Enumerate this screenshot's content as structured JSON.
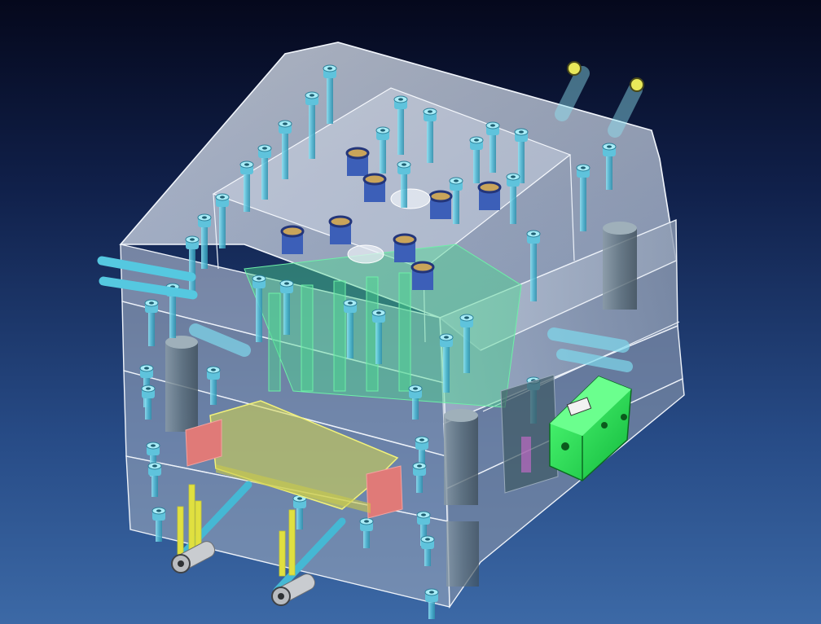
{
  "scene": {
    "subject": "mold-assembly-3d-view",
    "colors": {
      "background_top": "#05081c",
      "background_bottom": "#3c69a6",
      "plate_fill": "#c9d3e3",
      "plate_edge": "#e8eef8",
      "screw": "#5fc3dc",
      "cavity_insert": "#3c5fb8",
      "cooling_line": "#55c8e0",
      "ejector_plate": "#d8d84a",
      "locating_block": "#e07a78",
      "slide_block": "#2ee85a",
      "coolant_channel": "#4bd890",
      "core_post": "#6b7f8a",
      "pin": "#e0e040"
    },
    "components": [
      "clamp-plate-top",
      "cavity-plate",
      "core-plate",
      "support-plate",
      "ejector-plate",
      "clamp-plate-bottom",
      "slide-block",
      "locating-blocks",
      "cooling-lines",
      "cavity-inserts",
      "socket-head-screws",
      "guide-pins"
    ]
  }
}
